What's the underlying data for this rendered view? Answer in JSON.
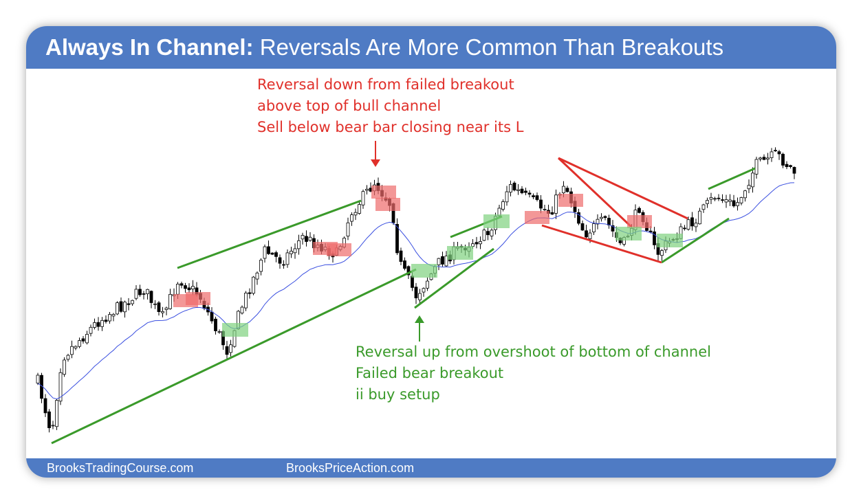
{
  "header": {
    "title_bold": "Always In Channel:",
    "title_rest": "Reversals Are More Common Than Breakouts"
  },
  "annotations": {
    "top": [
      "Reversal down from failed breakout",
      "above top of bull channel",
      "Sell below bear bar closing near its L"
    ],
    "bottom": [
      "Reversal up from overshoot of bottom of channel",
      "Failed bear breakout",
      "ii buy setup"
    ]
  },
  "footer": {
    "left": "BrooksTradingCourse.com",
    "right": "BrooksPriceAction.com"
  }
}
